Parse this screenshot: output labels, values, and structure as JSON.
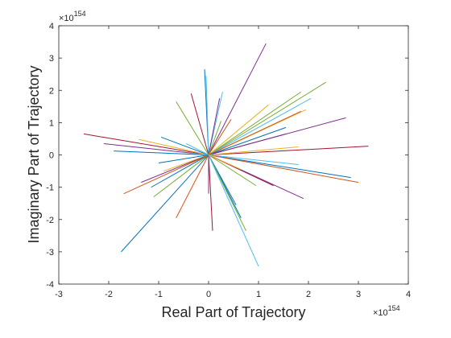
{
  "chart_data": {
    "type": "line",
    "title": "",
    "xlabel": "Real Part of Trajectory",
    "ylabel": "Imaginary Part of Trajectory",
    "xlim": [
      -3,
      4
    ],
    "ylim": [
      -4,
      4
    ],
    "xticks": [
      -3,
      -2,
      -1,
      0,
      1,
      2,
      3,
      4
    ],
    "yticks": [
      -4,
      -3,
      -2,
      -1,
      0,
      1,
      2,
      3,
      4
    ],
    "xtick_labels": [
      "-3",
      "-2",
      "-1",
      "0",
      "1",
      "2",
      "3",
      "4"
    ],
    "ytick_labels": [
      "-4",
      "-3",
      "-2",
      "-1",
      "0",
      "1",
      "2",
      "3",
      "4"
    ],
    "x_exponent_base": "×10",
    "x_exponent_power": "154",
    "y_exponent_base": "×10",
    "y_exponent_power": "154",
    "grid": false,
    "legend": "none",
    "units_note": "values in units of 1e154",
    "series_colors": [
      "#0072BD",
      "#D95319",
      "#EDB120",
      "#7E2F8E",
      "#77AC30",
      "#4DBEEE",
      "#A2142F"
    ],
    "segments": [
      {
        "x": 1.15,
        "y": 3.45,
        "color": "#7E2F8E"
      },
      {
        "x": -0.08,
        "y": 2.65,
        "color": "#0072BD"
      },
      {
        "x": -0.05,
        "y": 2.45,
        "color": "#4DBEEE"
      },
      {
        "x": 0.28,
        "y": 1.95,
        "color": "#4DBEEE"
      },
      {
        "x": 0.22,
        "y": 1.75,
        "color": "#7E2F8E"
      },
      {
        "x": -0.35,
        "y": 1.9,
        "color": "#A2142F"
      },
      {
        "x": -0.65,
        "y": 1.65,
        "color": "#77AC30"
      },
      {
        "x": 2.35,
        "y": 2.25,
        "color": "#77AC30"
      },
      {
        "x": 1.85,
        "y": 1.95,
        "color": "#77AC30"
      },
      {
        "x": 2.05,
        "y": 1.75,
        "color": "#4DBEEE"
      },
      {
        "x": 1.2,
        "y": 1.55,
        "color": "#EDB120"
      },
      {
        "x": 1.95,
        "y": 1.4,
        "color": "#EDB120"
      },
      {
        "x": 1.85,
        "y": 1.35,
        "color": "#D95319"
      },
      {
        "x": 2.75,
        "y": 1.15,
        "color": "#7E2F8E"
      },
      {
        "x": 0.45,
        "y": 1.1,
        "color": "#D95319"
      },
      {
        "x": 1.55,
        "y": 0.85,
        "color": "#0072BD"
      },
      {
        "x": 0.25,
        "y": 1.05,
        "color": "#77AC30"
      },
      {
        "x": 1.55,
        "y": 0.65,
        "color": "#7E2F8E"
      },
      {
        "x": 3.2,
        "y": 0.27,
        "color": "#A2142F"
      },
      {
        "x": 1.8,
        "y": 0.25,
        "color": "#EDB120"
      },
      {
        "x": -2.5,
        "y": 0.65,
        "color": "#A2142F"
      },
      {
        "x": -2.1,
        "y": 0.35,
        "color": "#7E2F8E"
      },
      {
        "x": -1.9,
        "y": 0.12,
        "color": "#0072BD"
      },
      {
        "x": -1.4,
        "y": 0.48,
        "color": "#EDB120"
      },
      {
        "x": -0.95,
        "y": 0.55,
        "color": "#0072BD"
      },
      {
        "x": -0.45,
        "y": 0.35,
        "color": "#4DBEEE"
      },
      {
        "x": -0.35,
        "y": 0.05,
        "color": "#4DBEEE"
      },
      {
        "x": -1.0,
        "y": -0.25,
        "color": "#0072BD"
      },
      {
        "x": -0.9,
        "y": -0.5,
        "color": "#EDB120"
      },
      {
        "x": -1.35,
        "y": -0.85,
        "color": "#7E2F8E"
      },
      {
        "x": -1.15,
        "y": -1.0,
        "color": "#0072BD"
      },
      {
        "x": -1.7,
        "y": -1.2,
        "color": "#D95319"
      },
      {
        "x": -1.1,
        "y": -1.3,
        "color": "#77AC30"
      },
      {
        "x": -1.75,
        "y": -3.0,
        "color": "#0072BD"
      },
      {
        "x": -0.65,
        "y": -1.95,
        "color": "#D95319"
      },
      {
        "x": 0.08,
        "y": -2.35,
        "color": "#A2142F"
      },
      {
        "x": 0.0,
        "y": -1.2,
        "color": "#7E2F8E"
      },
      {
        "x": 0.55,
        "y": -1.55,
        "color": "#0072BD"
      },
      {
        "x": 0.65,
        "y": -1.95,
        "color": "#0072BD"
      },
      {
        "x": 0.75,
        "y": -2.35,
        "color": "#77AC30"
      },
      {
        "x": 1.0,
        "y": -3.45,
        "color": "#4DBEEE"
      },
      {
        "x": 0.95,
        "y": -0.95,
        "color": "#77AC30"
      },
      {
        "x": 1.3,
        "y": -0.95,
        "color": "#A2142F"
      },
      {
        "x": 1.9,
        "y": -1.35,
        "color": "#7E2F8E"
      },
      {
        "x": 1.95,
        "y": -0.55,
        "color": "#4DBEEE"
      },
      {
        "x": 2.85,
        "y": -0.7,
        "color": "#0072BD"
      },
      {
        "x": 3.0,
        "y": -0.85,
        "color": "#D95319"
      },
      {
        "x": 1.8,
        "y": -0.3,
        "color": "#4DBEEE"
      },
      {
        "x": 0.65,
        "y": -0.45,
        "color": "#EDB120"
      }
    ]
  }
}
